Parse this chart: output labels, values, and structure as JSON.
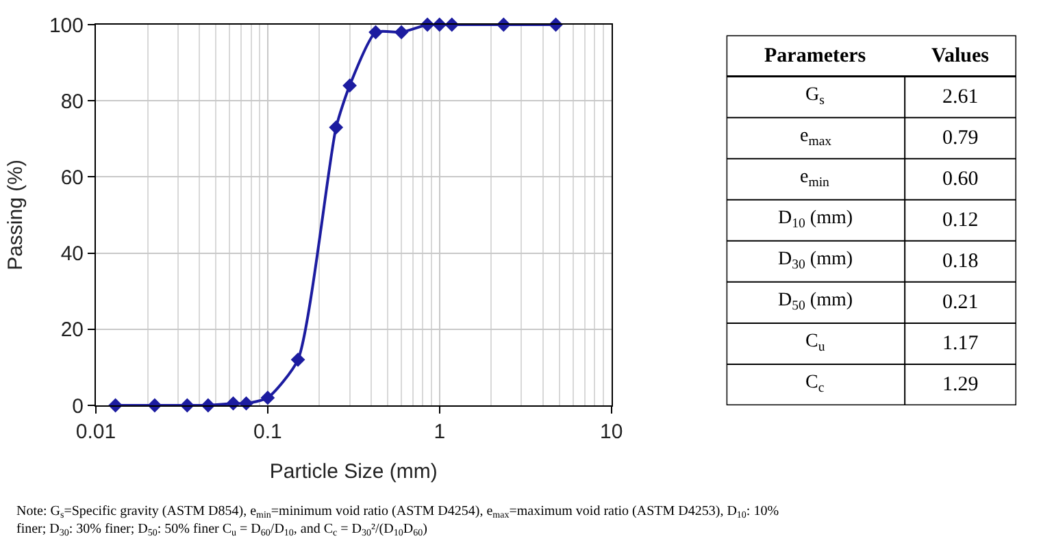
{
  "chart_data": [
    {
      "type": "line",
      "xlabel": "Particle Size (mm)",
      "ylabel": "Passing (%)",
      "x": [
        0.013,
        0.022,
        0.034,
        0.045,
        0.063,
        0.075,
        0.1,
        0.15,
        0.25,
        0.3,
        0.425,
        0.6,
        0.85,
        1.0,
        1.18,
        2.36,
        4.75
      ],
      "series": [
        {
          "color": "#1c1ca0",
          "values": [
            0,
            0,
            0,
            0,
            0.5,
            0.5,
            2,
            12,
            73,
            84,
            98,
            98,
            100,
            100,
            100,
            100,
            100
          ]
        }
      ],
      "log": "x",
      "xlim": [
        0.01,
        10
      ],
      "xticks": [
        0.01,
        0.1,
        1,
        10
      ],
      "ylim": [
        0,
        100
      ],
      "yticks": [
        0,
        20,
        40,
        60,
        80,
        100
      ],
      "grid": true,
      "marker": "diamond",
      "line_style": "solid",
      "annotations": [
        "Note: G$_{s}$=Specific gravity (ASTM D854), e$_{min}$=minimum void ratio (ASTM D4254), e$_{max}$=maximum void ratio (ASTM D4253), D$_{10}$: 10% finer; D$_{30}$: 30% finer; D$_{50}$: 50% finer C$_{u}$ = D$_{60}$/D$_{10}$, and C$_{c}$ = D$_{30}$²/(D$_{10}$D$_{60}$)"
      ]
    },
    {
      "type": "other",
      "annotations": [
        "Parameters",
        "Values"
      ],
      "categories": [
        "G$_{s}$",
        "e$_{max}$",
        "e$_{min}$",
        "D$_{10}$ (mm)",
        "D$_{30}$ (mm)",
        "D$_{50}$ (mm)",
        "C$_{u}$",
        "C$_{c}$"
      ],
      "value_labels": [
        "2.61",
        "0.79",
        "0.60",
        "0.12",
        "0.18",
        "0.21",
        "1.17",
        "1.29"
      ]
    }
  ]
}
